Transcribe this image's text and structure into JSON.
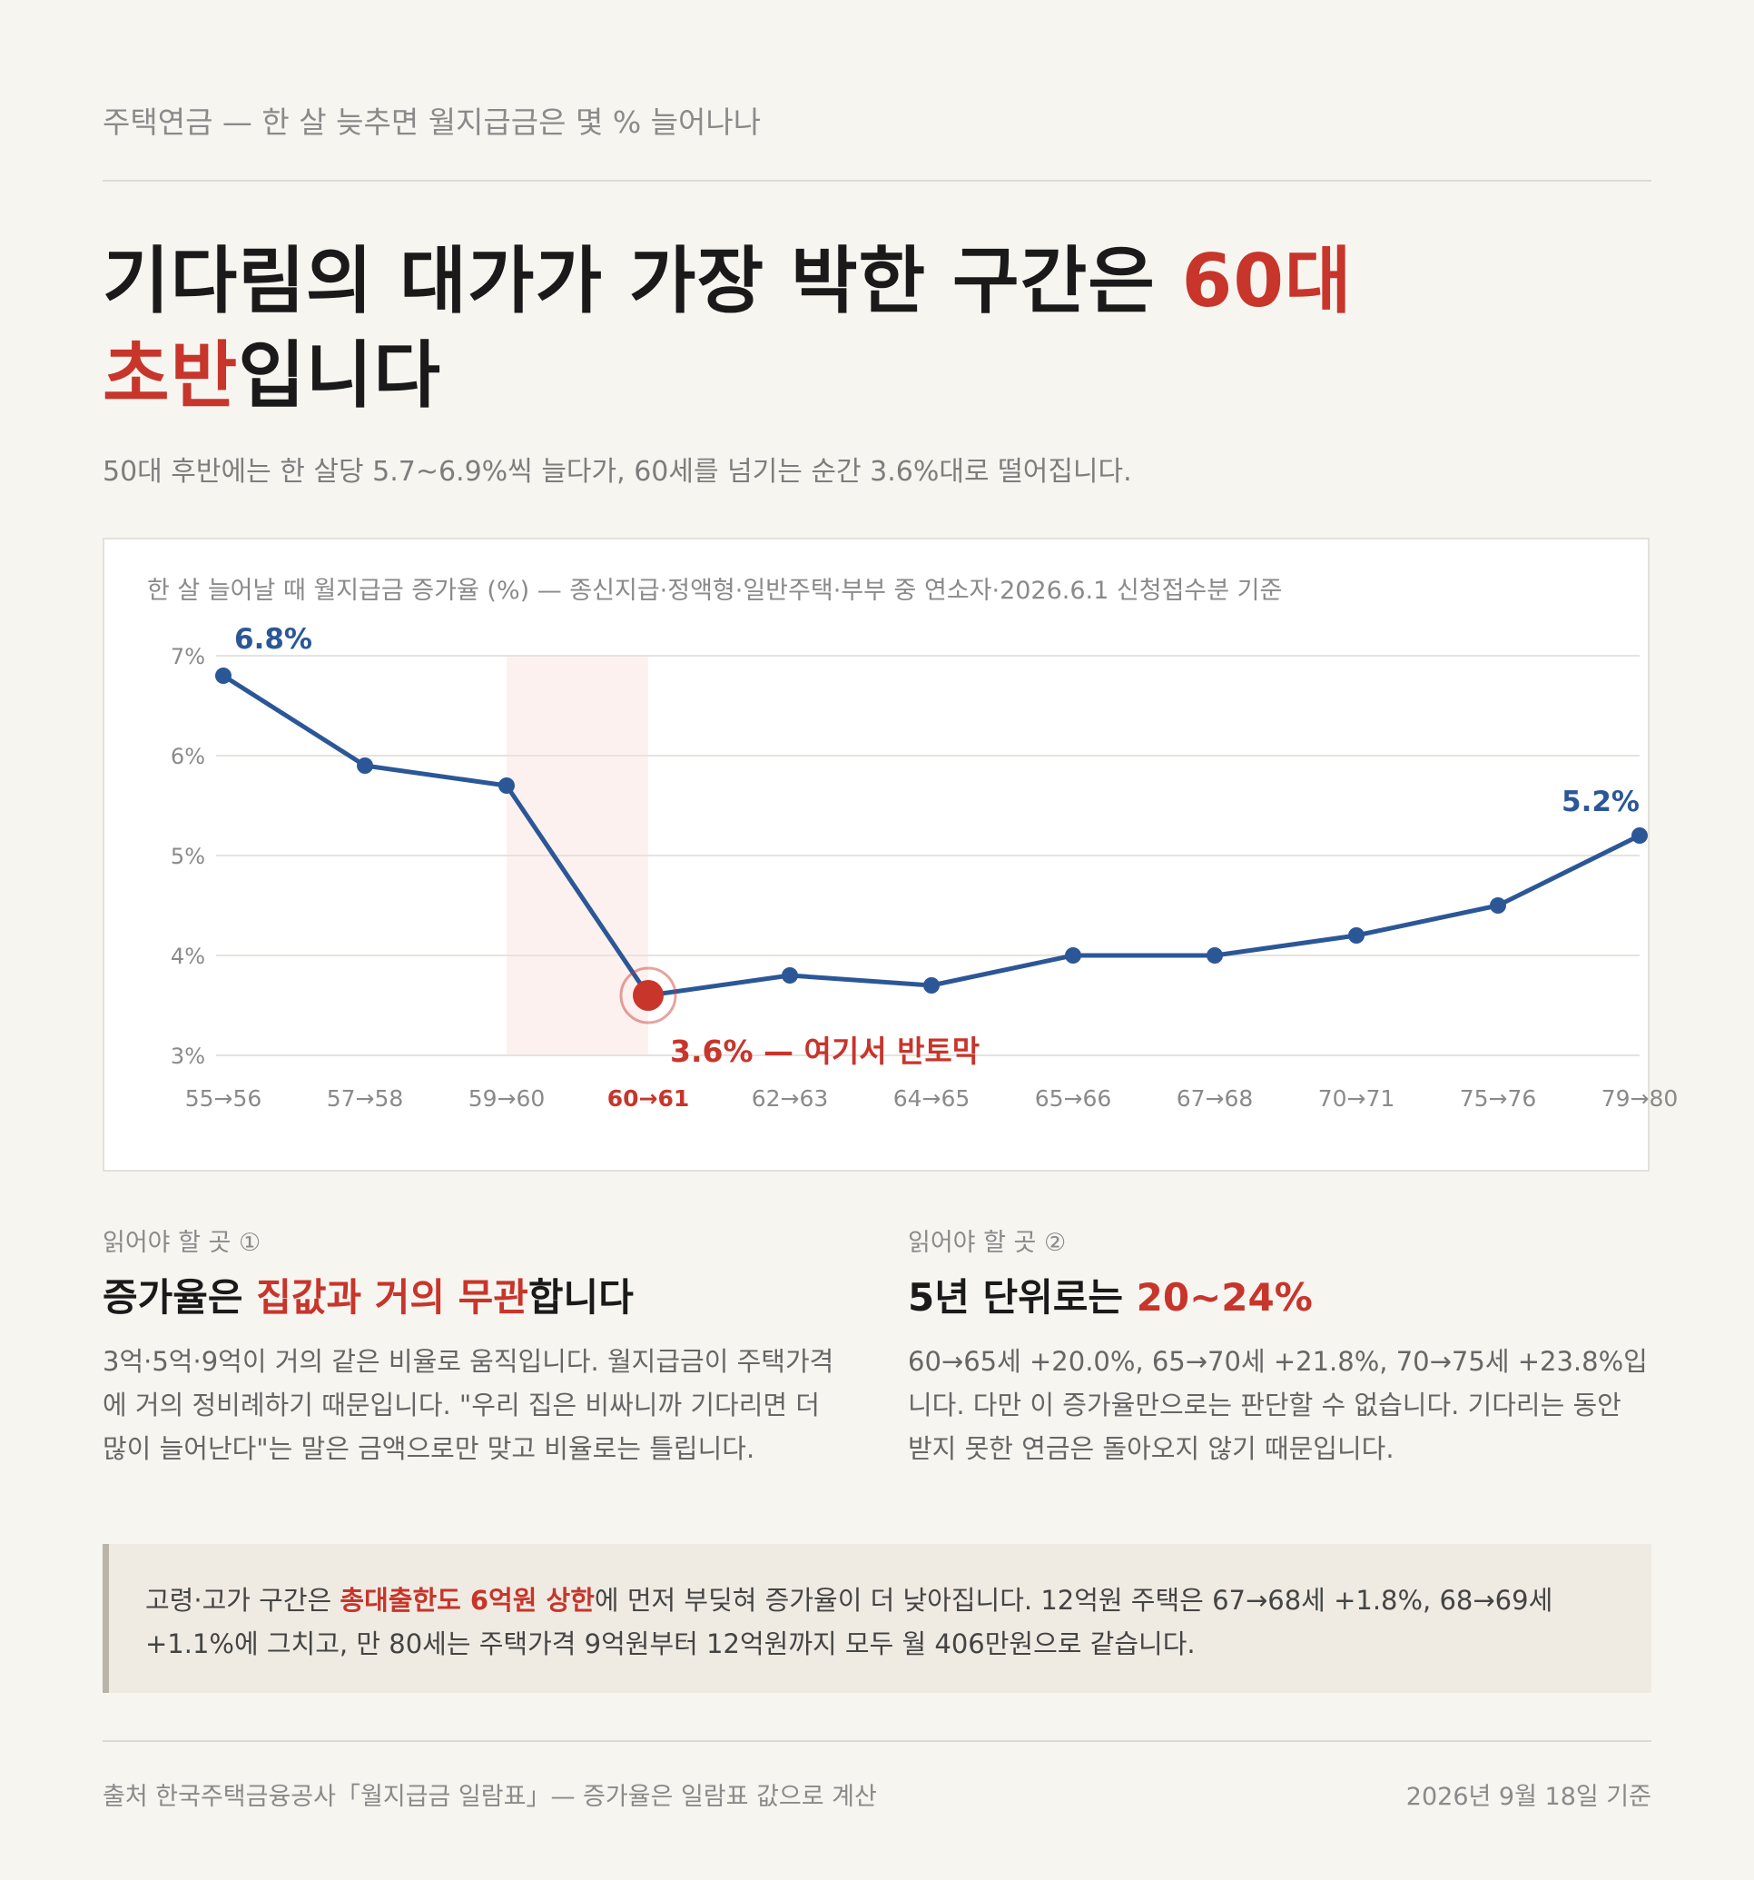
{
  "header": {
    "kicker": "주택연금 — 한 살 늦추면 월지급금은 몇 % 늘어나나",
    "headline_pre": "기다림의 대가가 가장 박한 구간은 ",
    "headline_accent1": "60대",
    "headline_accent2": "초반",
    "headline_post": "입니다",
    "subhead": "50대 후반에는 한 살당 5.7~6.9%씩 늘다가, 60세를 넘기는 순간 3.6%대로 떨어집니다."
  },
  "chart_caption": "한 살 늘어날 때 월지급금 증가율 (%) — 종신지급·정액형·일반주택·부부 중 연소자·2026.6.1 신청접수분 기준",
  "chart_data": {
    "type": "line",
    "categories": [
      "55→56",
      "57→58",
      "59→60",
      "60→61",
      "62→63",
      "64→65",
      "65→66",
      "67→68",
      "70→71",
      "75→76",
      "79→80"
    ],
    "series": [
      {
        "values": [
          6.8,
          5.9,
          5.7,
          3.6,
          3.8,
          3.7,
          4.0,
          4.0,
          4.2,
          4.5,
          5.2
        ]
      }
    ],
    "ylim": [
      3,
      7
    ],
    "y_ticks": [
      "3%",
      "4%",
      "5%",
      "6%",
      "7%"
    ],
    "y_tick_values": [
      3,
      4,
      5,
      6,
      7
    ],
    "highlight_index": 3,
    "highlight_band": [
      "59→60",
      "60→61"
    ],
    "annotations": {
      "first": "6.8%",
      "last": "5.2%",
      "highlight": "3.6% — 여기서 반토막"
    },
    "colors": {
      "line": "#2b5797",
      "highlight": "#c7352b",
      "band": "#fdf1ef",
      "grid": "#e6e3dd"
    },
    "grid": true,
    "legend": "none"
  },
  "columns": [
    {
      "eyebrow": "읽어야 할 곳 ①",
      "title_pre": "증가율은 ",
      "title_accent": "집값과 거의 무관",
      "title_post": "합니다",
      "body": "3억·5억·9억이 거의 같은 비율로 움직입니다. 월지급금이 주택가격에 거의 정비례하기 때문입니다. \"우리 집은 비싸니까 기다리면 더 많이 늘어난다\"는 말은 금액으로만 맞고 비율로는 틀립니다."
    },
    {
      "eyebrow": "읽어야 할 곳 ②",
      "title_pre": "5년 단위로는 ",
      "title_accent": "20~24%",
      "title_post": "",
      "body": "60→65세 +20.0%, 65→70세 +21.8%, 70→75세 +23.8%입니다. 다만 이 증가율만으로는 판단할 수 없습니다. 기다리는 동안 받지 못한 연금은 돌아오지 않기 때문입니다."
    }
  ],
  "note": {
    "pre": "고령·고가 구간은 ",
    "strong": "총대출한도 6억원 상한",
    "post": "에 먼저 부딪혀 증가율이 더 낮아집니다. 12억원 주택은 67→68세 +1.8%, 68→69세 +1.1%에 그치고, 만 80세는 주택가격 9억원부터 12억원까지 모두 월 406만원으로 같습니다."
  },
  "footer": {
    "source": "출처 한국주택금융공사「월지급금 일람표」— 증가율은 일람표 값으로 계산",
    "date": "2026년 9월 18일 기준"
  }
}
